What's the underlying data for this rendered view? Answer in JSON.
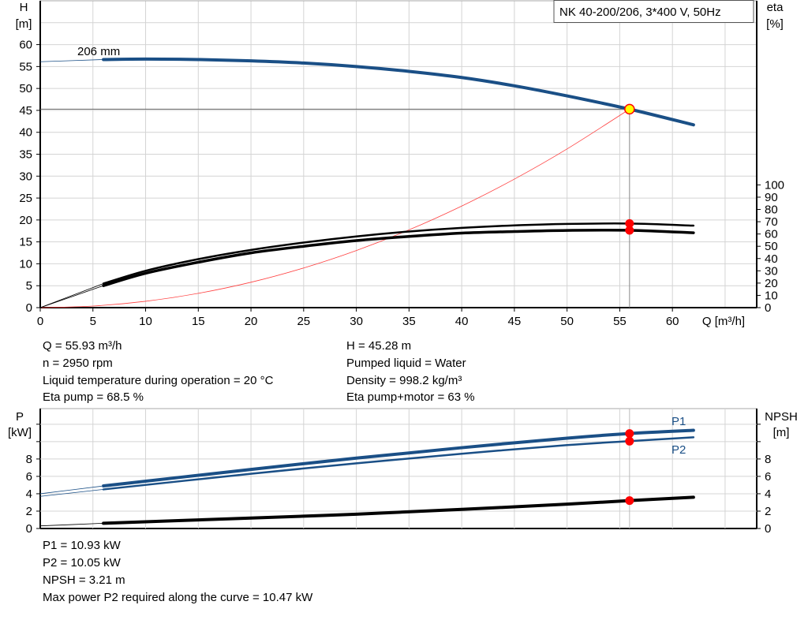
{
  "title": "NK 40-200/206, 3*400 V, 50Hz",
  "chart_data": [
    {
      "type": "line",
      "xlabel": "Q [m³/h]",
      "xlim": [
        0,
        68
      ],
      "xticks": [
        0,
        5,
        10,
        15,
        20,
        25,
        30,
        35,
        40,
        45,
        50,
        55,
        60
      ],
      "ylabel_left": [
        "H",
        "[m]"
      ],
      "ylim_left": [
        0,
        70
      ],
      "yticks_left": [
        0,
        5,
        10,
        15,
        20,
        25,
        30,
        35,
        40,
        45,
        50,
        55,
        60
      ],
      "ylabel_right": [
        "eta",
        "[%]"
      ],
      "ylim_right": [
        0,
        250
      ],
      "yticks_right": [
        0,
        10,
        20,
        30,
        40,
        50,
        60,
        70,
        80,
        90,
        100
      ],
      "grid": true,
      "impeller_label": "206 mm",
      "series": [
        {
          "key": "H",
          "axis": "left",
          "color": "#1a4f86",
          "x": [
            0,
            6,
            10,
            15,
            20,
            25,
            30,
            35,
            40,
            45,
            50,
            55.93,
            62
          ],
          "y": [
            56.1,
            56.6,
            56.7,
            56.6,
            56.3,
            55.8,
            55,
            53.9,
            52.5,
            50.6,
            48.3,
            45.28,
            41.7
          ]
        },
        {
          "key": "eta_pump",
          "axis": "right",
          "color": "#000000",
          "x": [
            0,
            6,
            10,
            15,
            20,
            25,
            30,
            35,
            40,
            45,
            50,
            55.93,
            62
          ],
          "y": [
            0,
            19.6,
            30,
            39.5,
            47,
            53,
            58,
            62,
            65,
            67,
            68.2,
            68.5,
            66.8
          ]
        },
        {
          "key": "eta_pump_motor",
          "axis": "right",
          "color": "#000000",
          "x": [
            0,
            6,
            10,
            15,
            20,
            25,
            30,
            35,
            40,
            45,
            50,
            55.93,
            62
          ],
          "y": [
            0,
            17.9,
            28,
            37,
            44.6,
            50,
            54.6,
            58,
            60.7,
            62,
            62.9,
            63,
            61
          ]
        },
        {
          "key": "system_curve",
          "axis": "left",
          "color": "#ff4040",
          "x": [
            0,
            5,
            10,
            15,
            20,
            25,
            30,
            35,
            40,
            45,
            50,
            55.93
          ],
          "y": [
            0,
            0.36,
            1.45,
            3.26,
            5.79,
            9.05,
            13.03,
            17.74,
            23.17,
            29.32,
            36.2,
            45.28
          ]
        }
      ],
      "duty_point": {
        "q": 55.93,
        "h": 45.28,
        "eta_pump": 68.5,
        "eta_pump_motor": 63
      }
    },
    {
      "type": "line",
      "xlim": [
        0,
        68
      ],
      "ylabel_left": [
        "P",
        "[kW]"
      ],
      "ylim_left": [
        0,
        13.8
      ],
      "yticks_left": [
        0,
        2,
        4,
        6,
        8
      ],
      "ylabel_right": [
        "NPSH",
        "[m]"
      ],
      "yticks_right": [
        0,
        2,
        4,
        6,
        8
      ],
      "grid": true,
      "series": [
        {
          "name": "P1",
          "color": "#1a4f86",
          "x": [
            0,
            6,
            20,
            30,
            40,
            50,
            55.93,
            62
          ],
          "y": [
            4.0,
            4.9,
            6.8,
            8.1,
            9.3,
            10.4,
            10.93,
            11.3
          ]
        },
        {
          "name": "P2",
          "color": "#1a4f86",
          "x": [
            0,
            6,
            20,
            30,
            40,
            50,
            55.93,
            62
          ],
          "y": [
            3.7,
            4.5,
            6.3,
            7.5,
            8.6,
            9.6,
            10.05,
            10.5
          ]
        },
        {
          "key": "NPSH",
          "color": "#000000",
          "x": [
            0,
            6,
            20,
            30,
            40,
            50,
            55.93,
            62
          ],
          "y": [
            0.3,
            0.6,
            1.2,
            1.65,
            2.2,
            2.8,
            3.21,
            3.6
          ]
        }
      ],
      "duty_point": {
        "q": 55.93,
        "p1": 10.93,
        "p2": 10.05,
        "npsh": 3.21
      }
    }
  ],
  "info_left": [
    "Q = 55.93 m³/h",
    "n = 2950 rpm",
    "Liquid temperature during operation = 20 °C",
    "Eta pump = 68.5 %"
  ],
  "info_right": [
    "H = 45.28 m",
    "Pumped liquid = Water",
    "Density = 998.2 kg/m³",
    "Eta pump+motor = 63 %"
  ],
  "info_bottom": [
    "P1 = 10.93 kW",
    "P2 = 10.05 kW",
    "NPSH = 3.21 m",
    "Max power P2 required along the curve = 10.47 kW"
  ]
}
